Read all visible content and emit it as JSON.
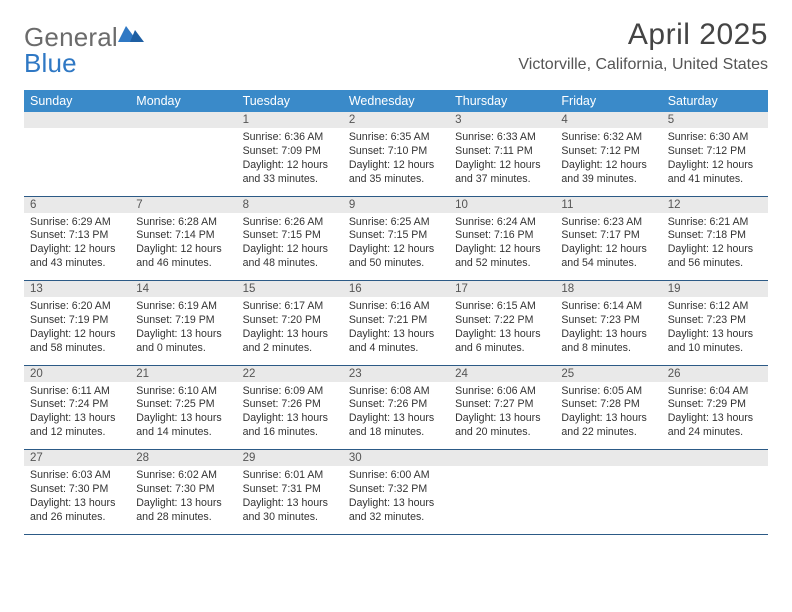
{
  "brand": {
    "word1": "General",
    "word2": "Blue"
  },
  "title": "April 2025",
  "subtitle": "Victorville, California, United States",
  "colors": {
    "header_bg": "#3a8ac9",
    "header_text": "#ffffff",
    "daynum_bg": "#e9e9e9",
    "rule": "#2c5a86",
    "logo_gray": "#6b6b6b",
    "logo_blue": "#2f78c4"
  },
  "weekdays": [
    "Sunday",
    "Monday",
    "Tuesday",
    "Wednesday",
    "Thursday",
    "Friday",
    "Saturday"
  ],
  "weeks": [
    {
      "nums": [
        "",
        "",
        "1",
        "2",
        "3",
        "4",
        "5"
      ],
      "cells": [
        null,
        null,
        {
          "sunrise": "6:36 AM",
          "sunset": "7:09 PM",
          "daylight": "12 hours and 33 minutes."
        },
        {
          "sunrise": "6:35 AM",
          "sunset": "7:10 PM",
          "daylight": "12 hours and 35 minutes."
        },
        {
          "sunrise": "6:33 AM",
          "sunset": "7:11 PM",
          "daylight": "12 hours and 37 minutes."
        },
        {
          "sunrise": "6:32 AM",
          "sunset": "7:12 PM",
          "daylight": "12 hours and 39 minutes."
        },
        {
          "sunrise": "6:30 AM",
          "sunset": "7:12 PM",
          "daylight": "12 hours and 41 minutes."
        }
      ]
    },
    {
      "nums": [
        "6",
        "7",
        "8",
        "9",
        "10",
        "11",
        "12"
      ],
      "cells": [
        {
          "sunrise": "6:29 AM",
          "sunset": "7:13 PM",
          "daylight": "12 hours and 43 minutes."
        },
        {
          "sunrise": "6:28 AM",
          "sunset": "7:14 PM",
          "daylight": "12 hours and 46 minutes."
        },
        {
          "sunrise": "6:26 AM",
          "sunset": "7:15 PM",
          "daylight": "12 hours and 48 minutes."
        },
        {
          "sunrise": "6:25 AM",
          "sunset": "7:15 PM",
          "daylight": "12 hours and 50 minutes."
        },
        {
          "sunrise": "6:24 AM",
          "sunset": "7:16 PM",
          "daylight": "12 hours and 52 minutes."
        },
        {
          "sunrise": "6:23 AM",
          "sunset": "7:17 PM",
          "daylight": "12 hours and 54 minutes."
        },
        {
          "sunrise": "6:21 AM",
          "sunset": "7:18 PM",
          "daylight": "12 hours and 56 minutes."
        }
      ]
    },
    {
      "nums": [
        "13",
        "14",
        "15",
        "16",
        "17",
        "18",
        "19"
      ],
      "cells": [
        {
          "sunrise": "6:20 AM",
          "sunset": "7:19 PM",
          "daylight": "12 hours and 58 minutes."
        },
        {
          "sunrise": "6:19 AM",
          "sunset": "7:19 PM",
          "daylight": "13 hours and 0 minutes."
        },
        {
          "sunrise": "6:17 AM",
          "sunset": "7:20 PM",
          "daylight": "13 hours and 2 minutes."
        },
        {
          "sunrise": "6:16 AM",
          "sunset": "7:21 PM",
          "daylight": "13 hours and 4 minutes."
        },
        {
          "sunrise": "6:15 AM",
          "sunset": "7:22 PM",
          "daylight": "13 hours and 6 minutes."
        },
        {
          "sunrise": "6:14 AM",
          "sunset": "7:23 PM",
          "daylight": "13 hours and 8 minutes."
        },
        {
          "sunrise": "6:12 AM",
          "sunset": "7:23 PM",
          "daylight": "13 hours and 10 minutes."
        }
      ]
    },
    {
      "nums": [
        "20",
        "21",
        "22",
        "23",
        "24",
        "25",
        "26"
      ],
      "cells": [
        {
          "sunrise": "6:11 AM",
          "sunset": "7:24 PM",
          "daylight": "13 hours and 12 minutes."
        },
        {
          "sunrise": "6:10 AM",
          "sunset": "7:25 PM",
          "daylight": "13 hours and 14 minutes."
        },
        {
          "sunrise": "6:09 AM",
          "sunset": "7:26 PM",
          "daylight": "13 hours and 16 minutes."
        },
        {
          "sunrise": "6:08 AM",
          "sunset": "7:26 PM",
          "daylight": "13 hours and 18 minutes."
        },
        {
          "sunrise": "6:06 AM",
          "sunset": "7:27 PM",
          "daylight": "13 hours and 20 minutes."
        },
        {
          "sunrise": "6:05 AM",
          "sunset": "7:28 PM",
          "daylight": "13 hours and 22 minutes."
        },
        {
          "sunrise": "6:04 AM",
          "sunset": "7:29 PM",
          "daylight": "13 hours and 24 minutes."
        }
      ]
    },
    {
      "nums": [
        "27",
        "28",
        "29",
        "30",
        "",
        "",
        ""
      ],
      "cells": [
        {
          "sunrise": "6:03 AM",
          "sunset": "7:30 PM",
          "daylight": "13 hours and 26 minutes."
        },
        {
          "sunrise": "6:02 AM",
          "sunset": "7:30 PM",
          "daylight": "13 hours and 28 minutes."
        },
        {
          "sunrise": "6:01 AM",
          "sunset": "7:31 PM",
          "daylight": "13 hours and 30 minutes."
        },
        {
          "sunrise": "6:00 AM",
          "sunset": "7:32 PM",
          "daylight": "13 hours and 32 minutes."
        },
        null,
        null,
        null
      ]
    }
  ],
  "labels": {
    "sunrise": "Sunrise: ",
    "sunset": "Sunset: ",
    "daylight": "Daylight: "
  }
}
